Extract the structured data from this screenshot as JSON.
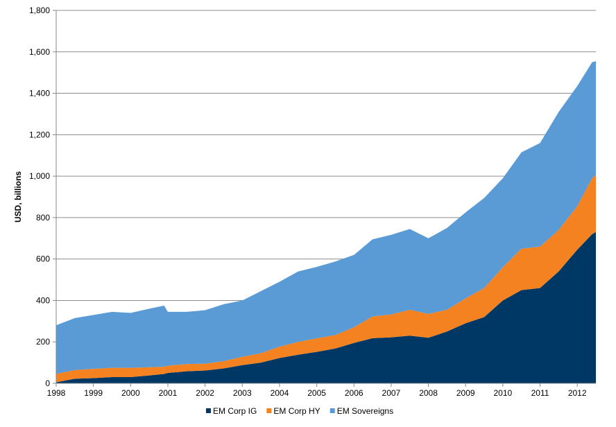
{
  "chart_data": {
    "type": "area",
    "stacked": true,
    "title": "",
    "xlabel": "",
    "ylabel": "USD, billions",
    "xlim": [
      1998,
      2012.5
    ],
    "ylim": [
      0,
      1800
    ],
    "grid": true,
    "legend_position": "bottom",
    "x_ticks": [
      1998,
      1999,
      2000,
      2001,
      2002,
      2003,
      2004,
      2005,
      2006,
      2007,
      2008,
      2009,
      2010,
      2011,
      2012
    ],
    "x_tick_labels": [
      "1998",
      "1999",
      "2000",
      "2001",
      "2002",
      "2003",
      "2004",
      "2005",
      "2006",
      "2007",
      "2008",
      "2009",
      "2010",
      "2011",
      "2012"
    ],
    "y_ticks": [
      0,
      200,
      400,
      600,
      800,
      1000,
      1200,
      1400,
      1600,
      1800
    ],
    "y_tick_labels": [
      "0",
      "200",
      "400",
      "600",
      "800",
      "1,000",
      "1,200",
      "1,400",
      "1,600",
      "1,800"
    ],
    "x": [
      1998.0,
      1998.5,
      1999.0,
      1999.5,
      2000.0,
      2000.5,
      2000.9,
      2001.0,
      2001.5,
      2002.0,
      2002.5,
      2003.0,
      2003.5,
      2004.0,
      2004.5,
      2005.0,
      2005.5,
      2006.0,
      2006.5,
      2007.0,
      2007.5,
      2008.0,
      2008.5,
      2009.0,
      2009.5,
      2010.0,
      2010.5,
      2011.0,
      2011.5,
      2012.0,
      2012.4,
      2012.5
    ],
    "series": [
      {
        "name": "EM Corp IG",
        "color": "#003865",
        "values": [
          5,
          22,
          25,
          30,
          30,
          38,
          45,
          50,
          58,
          62,
          72,
          88,
          100,
          122,
          138,
          152,
          168,
          195,
          218,
          222,
          230,
          220,
          250,
          290,
          320,
          400,
          450,
          460,
          540,
          645,
          720,
          730
        ]
      },
      {
        "name": "EM Corp HY",
        "color": "#f58220",
        "values": [
          40,
          42,
          45,
          45,
          45,
          40,
          35,
          35,
          35,
          33,
          35,
          40,
          45,
          55,
          62,
          65,
          65,
          75,
          105,
          110,
          125,
          115,
          105,
          120,
          140,
          160,
          200,
          200,
          200,
          210,
          270,
          275
        ]
      },
      {
        "name": "EM Sovereigns",
        "color": "#5b9bd5",
        "values": [
          235,
          251,
          260,
          270,
          265,
          282,
          295,
          260,
          252,
          258,
          275,
          272,
          300,
          313,
          340,
          345,
          355,
          350,
          372,
          385,
          390,
          365,
          395,
          415,
          435,
          430,
          465,
          500,
          570,
          580,
          560,
          550
        ]
      }
    ]
  }
}
